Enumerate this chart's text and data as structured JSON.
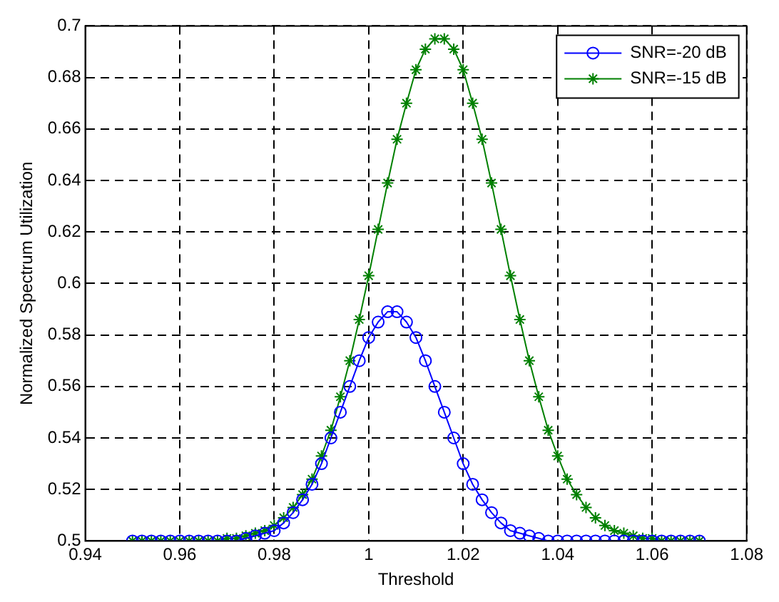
{
  "chart_data": {
    "type": "line",
    "xlabel": "Threshold",
    "ylabel": "Normalized Spectrum Utilization",
    "x": [
      0.95,
      0.952,
      0.954,
      0.956,
      0.958,
      0.96,
      0.962,
      0.964,
      0.966,
      0.968,
      0.97,
      0.972,
      0.974,
      0.976,
      0.978,
      0.98,
      0.982,
      0.984,
      0.986,
      0.988,
      0.99,
      0.992,
      0.994,
      0.996,
      0.998,
      1.0,
      1.002,
      1.004,
      1.006,
      1.008,
      1.01,
      1.012,
      1.014,
      1.016,
      1.018,
      1.02,
      1.022,
      1.024,
      1.026,
      1.028,
      1.03,
      1.032,
      1.034,
      1.036,
      1.038,
      1.04,
      1.042,
      1.044,
      1.046,
      1.048,
      1.05,
      1.052,
      1.054,
      1.056,
      1.058,
      1.06,
      1.062,
      1.064,
      1.066,
      1.068,
      1.07
    ],
    "series": [
      {
        "name": "SNR=-20 dB",
        "color": "#0000ff",
        "marker": "circle",
        "values": [
          0.5,
          0.5,
          0.5,
          0.5,
          0.5,
          0.5,
          0.5,
          0.5,
          0.5,
          0.5,
          0.5,
          0.5,
          0.501,
          0.502,
          0.503,
          0.504,
          0.507,
          0.511,
          0.516,
          0.522,
          0.53,
          0.54,
          0.55,
          0.56,
          0.57,
          0.579,
          0.585,
          0.589,
          0.589,
          0.585,
          0.579,
          0.57,
          0.56,
          0.55,
          0.54,
          0.53,
          0.522,
          0.516,
          0.511,
          0.507,
          0.504,
          0.503,
          0.502,
          0.501,
          0.5,
          0.5,
          0.5,
          0.5,
          0.5,
          0.5,
          0.5,
          0.5,
          0.5,
          0.5,
          0.5,
          0.5,
          0.5,
          0.5,
          0.5,
          0.5,
          0.5
        ]
      },
      {
        "name": "SNR=-15 dB",
        "color": "#008000",
        "marker": "cross",
        "values": [
          0.5,
          0.5,
          0.5,
          0.5,
          0.5,
          0.5,
          0.5,
          0.5,
          0.5,
          0.5,
          0.501,
          0.501,
          0.502,
          0.503,
          0.504,
          0.506,
          0.509,
          0.513,
          0.518,
          0.524,
          0.533,
          0.543,
          0.556,
          0.57,
          0.586,
          0.603,
          0.621,
          0.639,
          0.656,
          0.67,
          0.683,
          0.691,
          0.695,
          0.695,
          0.691,
          0.683,
          0.67,
          0.656,
          0.639,
          0.621,
          0.603,
          0.586,
          0.57,
          0.556,
          0.543,
          0.533,
          0.524,
          0.518,
          0.513,
          0.509,
          0.506,
          0.504,
          0.503,
          0.502,
          0.501,
          0.501,
          0.5,
          0.5,
          0.5,
          0.5,
          0.5
        ]
      }
    ],
    "xlim": [
      0.94,
      1.08
    ],
    "xticks": [
      0.94,
      0.96,
      0.98,
      1,
      1.02,
      1.04,
      1.06,
      1.08
    ],
    "ylim": [
      0.5,
      0.7
    ],
    "yticks": [
      0.5,
      0.52,
      0.54,
      0.56,
      0.58,
      0.6,
      0.62,
      0.64,
      0.66,
      0.68,
      0.7
    ],
    "grid": true,
    "legend": "top right",
    "line_style": "solid"
  }
}
